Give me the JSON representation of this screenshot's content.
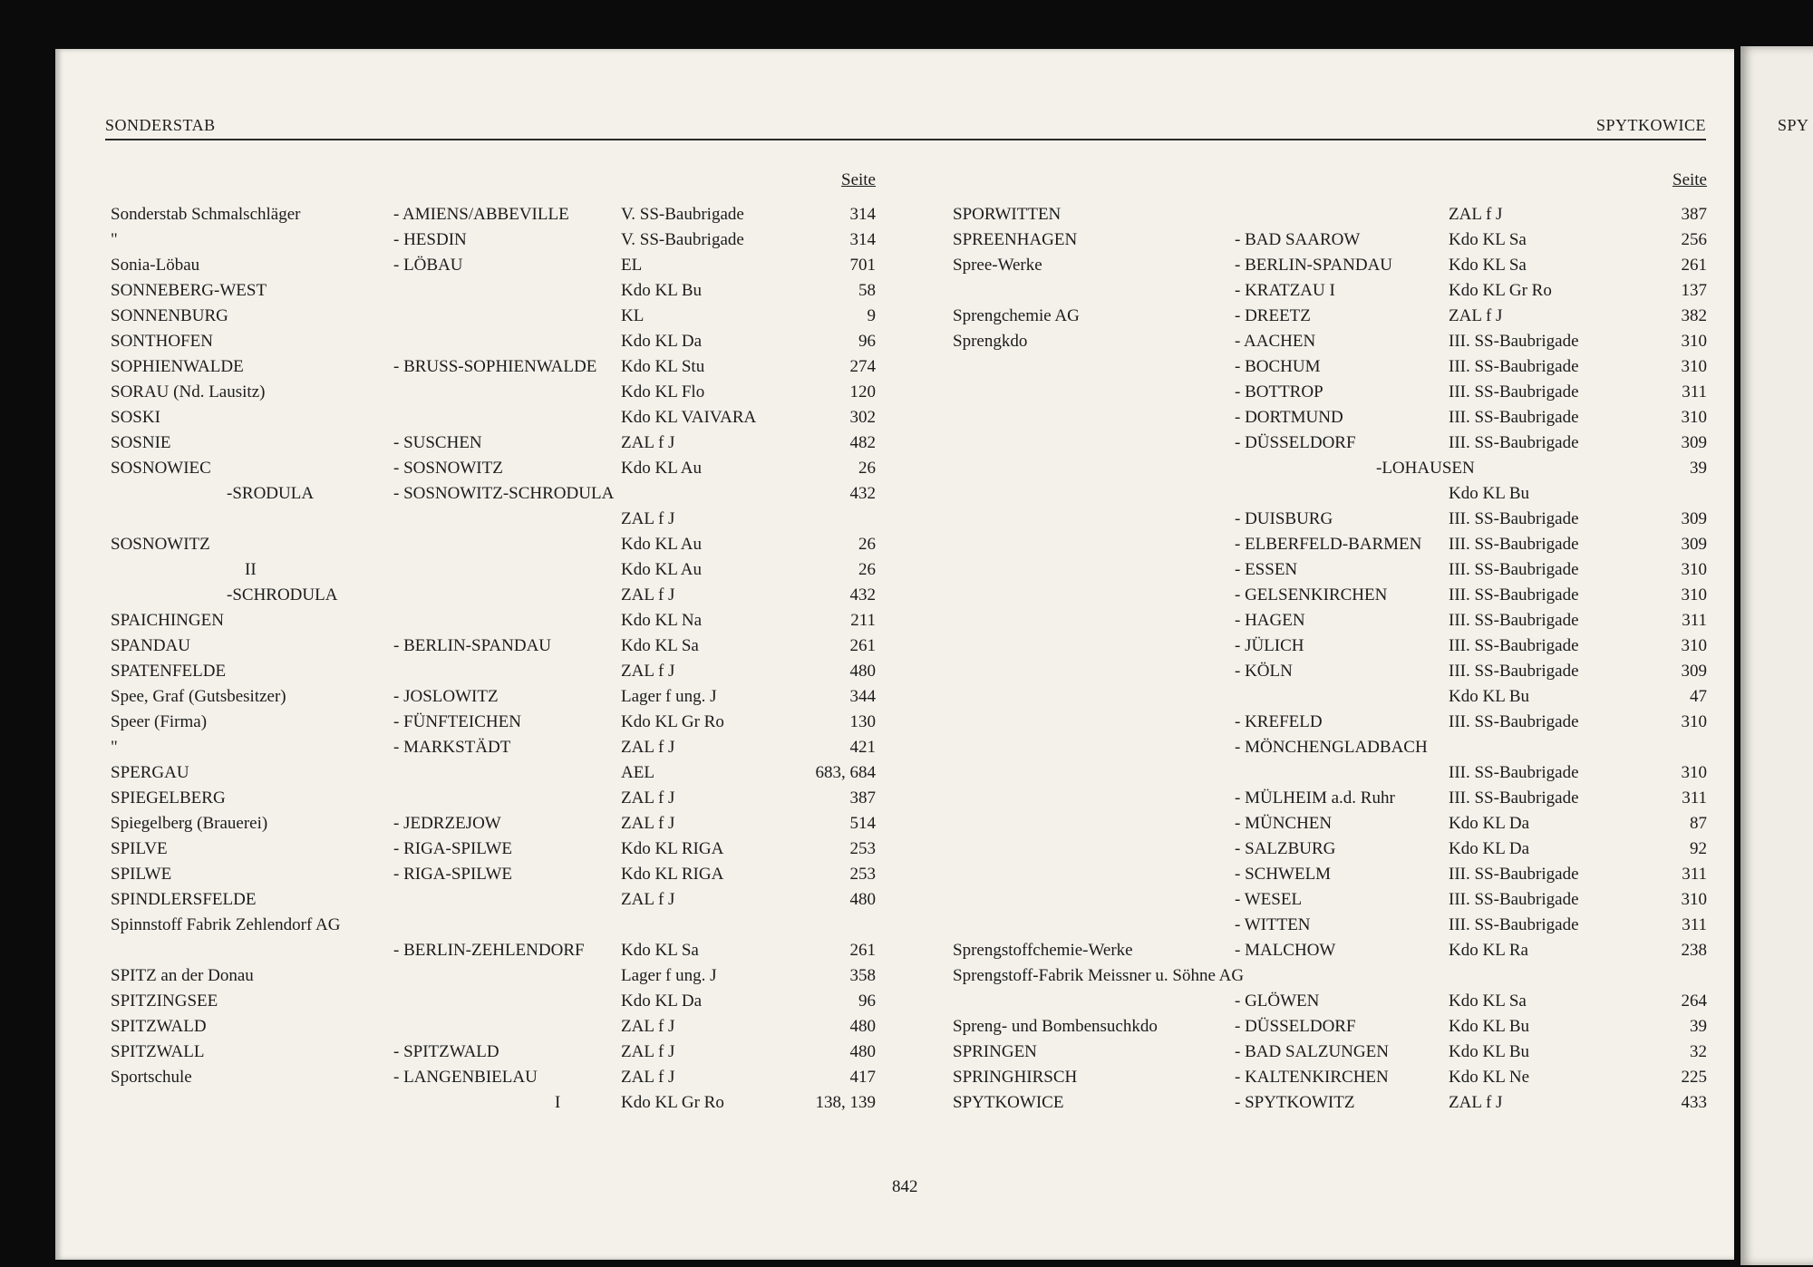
{
  "header": {
    "left": "SONDERSTAB",
    "right": "SPYTKOWICE",
    "next_page": "SPY"
  },
  "columns": [
    {
      "seite": "Seite",
      "rows": [
        {
          "name": "Sonderstab Schmalschläger",
          "place": "- AMIENS/ABBEVILLE",
          "type": "V. SS-Baubrigade",
          "page": "314"
        },
        {
          "name": "\"",
          "place": "- HESDIN",
          "type": "V. SS-Baubrigade",
          "page": "314"
        },
        {
          "name": "Sonia-Löbau",
          "place": "- LÖBAU",
          "type": "EL",
          "page": "701"
        },
        {
          "name": "SONNEBERG-WEST",
          "type": "Kdo KL Bu",
          "page": "58"
        },
        {
          "name": "SONNENBURG",
          "type": "KL",
          "page": "9"
        },
        {
          "name": "SONTHOFEN",
          "type": "Kdo KL Da",
          "page": "96"
        },
        {
          "name": "SOPHIENWALDE",
          "place": "- BRUSS-SOPHIENWALDE",
          "type": "Kdo KL Stu",
          "page": "274"
        },
        {
          "name": "SORAU (Nd. Lausitz)",
          "type": "Kdo KL Flo",
          "page": "120"
        },
        {
          "name": "SOSKI",
          "type": "Kdo KL VAIVARA",
          "page": "302"
        },
        {
          "name": "SOSNIE",
          "place": "- SUSCHEN",
          "type": "ZAL f J",
          "page": "482"
        },
        {
          "name": "SOSNOWIEC",
          "place": "- SOSNOWITZ",
          "type": "Kdo KL Au",
          "page": "26"
        },
        {
          "name": "-SRODULA",
          "place": "- SOSNOWITZ-SCHRODULA",
          "page": "432"
        },
        {
          "type": "ZAL f J"
        },
        {
          "name": "SOSNOWITZ",
          "type": "Kdo KL Au",
          "page": "26"
        },
        {
          "name": "II",
          "type": "Kdo KL Au",
          "page": "26"
        },
        {
          "name": "-SCHRODULA",
          "type": "ZAL f J",
          "page": "432"
        },
        {
          "name": "SPAICHINGEN",
          "type": "Kdo KL Na",
          "page": "211"
        },
        {
          "name": "SPANDAU",
          "place": "- BERLIN-SPANDAU",
          "type": "Kdo KL Sa",
          "page": "261"
        },
        {
          "name": "SPATENFELDE",
          "type": "ZAL f J",
          "page": "480"
        },
        {
          "name": "Spee, Graf (Gutsbesitzer)",
          "place": "- JOSLOWITZ",
          "type": "Lager f ung. J",
          "page": "344"
        },
        {
          "name": "Speer (Firma)",
          "place": "- FÜNFTEICHEN",
          "type": "Kdo KL Gr Ro",
          "page": "130"
        },
        {
          "name": "\"",
          "place": "- MARKSTÄDT",
          "type": "ZAL f J",
          "page": "421"
        },
        {
          "name": "SPERGAU",
          "type": "AEL",
          "page": "683, 684"
        },
        {
          "name": "SPIEGELBERG",
          "type": "ZAL f J",
          "page": "387"
        },
        {
          "name": "Spiegelberg (Brauerei)",
          "place": "- JEDRZEJOW",
          "type": "ZAL f J",
          "page": "514"
        },
        {
          "name": "SPILVE",
          "place": "- RIGA-SPILWE",
          "type": "Kdo KL RIGA",
          "page": "253"
        },
        {
          "name": "SPILWE",
          "place": "- RIGA-SPILWE",
          "type": "Kdo KL RIGA",
          "page": "253"
        },
        {
          "name": "SPINDLERSFELDE",
          "type": "ZAL f J",
          "page": "480"
        },
        {
          "name": "Spinnstoff Fabrik Zehlendorf AG"
        },
        {
          "place": "- BERLIN-ZEHLENDORF",
          "type": "Kdo KL Sa",
          "page": "261"
        },
        {
          "name": "SPITZ an der Donau",
          "type": "Lager f ung. J",
          "page": "358"
        },
        {
          "name": "SPITZINGSEE",
          "type": "Kdo KL Da",
          "page": "96"
        },
        {
          "name": "SPITZWALD",
          "type": "ZAL f J",
          "page": "480"
        },
        {
          "name": "SPITZWALL",
          "place": "- SPITZWALD",
          "type": "ZAL f J",
          "page": "480"
        },
        {
          "name": "Sportschule",
          "place": "- LANGENBIELAU",
          "type": "ZAL f J",
          "page": "417"
        },
        {
          "place": "I",
          "type": "Kdo KL Gr Ro",
          "page": "138, 139"
        }
      ]
    },
    {
      "seite": "Seite",
      "rows": [
        {
          "name": "SPORWITTEN",
          "type": "ZAL f J",
          "page": "387"
        },
        {
          "name": "SPREENHAGEN",
          "place": "- BAD SAAROW",
          "type": "Kdo KL Sa",
          "page": "256"
        },
        {
          "name": "Spree-Werke",
          "place": "- BERLIN-SPANDAU",
          "type": "Kdo KL Sa",
          "page": "261"
        },
        {
          "place": "- KRATZAU I",
          "type": "Kdo KL Gr Ro",
          "page": "137"
        },
        {
          "name": "Sprengchemie AG",
          "place": "- DREETZ",
          "type": "ZAL f J",
          "page": "382"
        },
        {
          "name": "Sprengkdo",
          "place": "- AACHEN",
          "type": "III. SS-Baubrigade",
          "page": "310"
        },
        {
          "place": "- BOCHUM",
          "type": "III. SS-Baubrigade",
          "page": "310"
        },
        {
          "place": "- BOTTROP",
          "type": "III. SS-Baubrigade",
          "page": "311"
        },
        {
          "place": "- DORTMUND",
          "type": "III. SS-Baubrigade",
          "page": "310"
        },
        {
          "place": "- DÜSSELDORF",
          "type": "III. SS-Baubrigade",
          "page": "309"
        },
        {
          "place": "-LOHAUSEN",
          "page": "39"
        },
        {
          "type": "Kdo KL Bu"
        },
        {
          "place": "- DUISBURG",
          "type": "III. SS-Baubrigade",
          "page": "309"
        },
        {
          "place": "- ELBERFELD-BARMEN",
          "type": "III. SS-Baubrigade",
          "page": "309"
        },
        {
          "place": "- ESSEN",
          "type": "III. SS-Baubrigade",
          "page": "310"
        },
        {
          "place": "- GELSENKIRCHEN",
          "type": "III. SS-Baubrigade",
          "page": "310"
        },
        {
          "place": "- HAGEN",
          "type": "III. SS-Baubrigade",
          "page": "311"
        },
        {
          "place": "- JÜLICH",
          "type": "III. SS-Baubrigade",
          "page": "310"
        },
        {
          "place": "- KÖLN",
          "type": "III. SS-Baubrigade",
          "page": "309"
        },
        {
          "type": "Kdo KL Bu",
          "page": "47"
        },
        {
          "place": "- KREFELD",
          "type": "III. SS-Baubrigade",
          "page": "310"
        },
        {
          "place": "- MÖNCHENGLADBACH"
        },
        {
          "type": "III. SS-Baubrigade",
          "page": "310"
        },
        {
          "place": "- MÜLHEIM a.d. Ruhr",
          "type": "III. SS-Baubrigade",
          "page": "311"
        },
        {
          "place": "- MÜNCHEN",
          "type": "Kdo KL Da",
          "page": "87"
        },
        {
          "place": "- SALZBURG",
          "type": "Kdo KL Da",
          "page": "92"
        },
        {
          "place": "- SCHWELM",
          "type": "III. SS-Baubrigade",
          "page": "311"
        },
        {
          "place": "- WESEL",
          "type": "III. SS-Baubrigade",
          "page": "310"
        },
        {
          "place": "- WITTEN",
          "type": "III. SS-Baubrigade",
          "page": "311"
        },
        {
          "name": "Sprengstoffchemie-Werke",
          "place": "- MALCHOW",
          "type": "Kdo KL Ra",
          "page": "238"
        },
        {
          "name": "Sprengstoff-Fabrik Meissner u. Söhne AG"
        },
        {
          "place": "- GLÖWEN",
          "type": "Kdo KL Sa",
          "page": "264"
        },
        {
          "name": "Spreng- und Bombensuchkdo",
          "place": "- DÜSSELDORF",
          "type": "Kdo KL Bu",
          "page": "39"
        },
        {
          "name": "SPRINGEN",
          "place": "- BAD SALZUNGEN",
          "type": "Kdo KL Bu",
          "page": "32"
        },
        {
          "name": "SPRINGHIRSCH",
          "place": "- KALTENKIRCHEN",
          "type": "Kdo KL Ne",
          "page": "225"
        },
        {
          "name": "SPYTKOWICE",
          "place": "- SPYTKOWITZ",
          "type": "ZAL f J",
          "page": "433"
        }
      ]
    }
  ],
  "page_number": "842"
}
